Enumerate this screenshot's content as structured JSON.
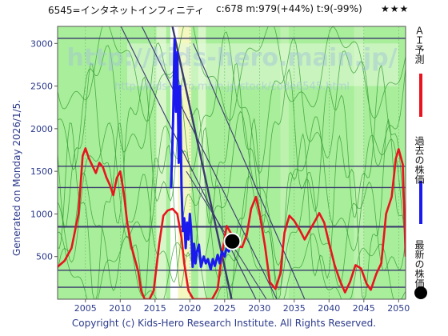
{
  "header": {
    "name": "6545=インタネットインフィニティ",
    "stats": "c:678  m:979(+44%)  t:9(-99%)",
    "stars": "★★★"
  },
  "footer": "Copyright (c) Kids-Hero Research Institute. All Rights Reserved.",
  "generated": "Generated on Monday 2026/1/5.",
  "legend": {
    "ai": "ＡＩ予測",
    "past": "過去の株価",
    "latest": "最新の株価"
  },
  "watermark": {
    "line1": "http://kids-hero.main.jp/",
    "line2": "http://kids-hero.main.jp/stock/code6545.html"
  },
  "colors": {
    "ai": "#e8141e",
    "past": "#1a1aee",
    "latest": "#000000",
    "trend": "#3a3a6e",
    "green": "#a9ee9a",
    "axis": "#2b3a8a"
  },
  "chart_data": {
    "type": "line",
    "xlim": [
      2001,
      2051
    ],
    "ylim": [
      0,
      3200
    ],
    "xticks": [
      2005,
      2010,
      2015,
      2020,
      2025,
      2030,
      2035,
      2040,
      2045,
      2050
    ],
    "yticks": [
      500,
      1000,
      1500,
      2000,
      2500,
      3000
    ],
    "h_levels": [
      140,
      340,
      850,
      1310,
      1560,
      3060
    ],
    "series": [
      {
        "name": "ＡＩ予測",
        "x": [
          2001,
          2002,
          2003,
          2004,
          2004.6,
          2005,
          2005.5,
          2006.5,
          2007,
          2007.5,
          2008,
          2008.5,
          2009,
          2009.5,
          2010,
          2010.5,
          2011,
          2011.6,
          2012,
          2012.6,
          2013,
          2013.5,
          2014.2,
          2014.8,
          2015.6,
          2016.2,
          2016.8,
          2017.5,
          2018.2,
          2018.8,
          2019.2,
          2019.8,
          2020.5,
          2021.5,
          2022.5,
          2023.2,
          2024,
          2024.6,
          2025.3,
          2026,
          2026.8,
          2027.5,
          2028.2,
          2028.8,
          2029.5,
          2030,
          2030.8,
          2031.5,
          2032.3,
          2033,
          2033.6,
          2034.3,
          2035,
          2035.8,
          2036.5,
          2037.3,
          2038,
          2038.6,
          2039.3,
          2040,
          2040.8,
          2041.6,
          2042.3,
          2043,
          2043.8,
          2044.6,
          2045.4,
          2046,
          2046.8,
          2047.5,
          2048.2,
          2049,
          2049.6,
          2050,
          2050.6,
          2051
        ],
        "y": [
          380,
          450,
          600,
          1000,
          1680,
          1770,
          1650,
          1480,
          1600,
          1550,
          1430,
          1340,
          1220,
          1420,
          1500,
          1250,
          900,
          620,
          500,
          320,
          100,
          0,
          0,
          100,
          650,
          980,
          1040,
          1060,
          1000,
          720,
          420,
          100,
          0,
          0,
          0,
          0,
          120,
          520,
          860,
          760,
          620,
          610,
          760,
          1060,
          1200,
          1020,
          620,
          200,
          120,
          300,
          780,
          980,
          920,
          810,
          700,
          820,
          920,
          1010,
          900,
          660,
          400,
          210,
          80,
          200,
          400,
          360,
          180,
          110,
          300,
          420,
          1000,
          1200,
          1650,
          1760,
          1580,
          500
        ]
      },
      {
        "name": "過去の株価",
        "x": [
          2017.3,
          2017.6,
          2017.8,
          2018,
          2018.2,
          2018.4,
          2018.6,
          2018.8,
          2019,
          2019.2,
          2019.4,
          2019.6,
          2019.8,
          2020,
          2020.2,
          2020.4,
          2020.6,
          2020.8,
          2021,
          2021.3,
          2021.6,
          2022,
          2022.3,
          2022.6,
          2023,
          2023.3,
          2023.6,
          2024,
          2024.3,
          2024.6,
          2025,
          2025.3,
          2025.6,
          2025.9
        ],
        "y": [
          1300,
          2100,
          3050,
          2200,
          2900,
          1600,
          2500,
          1300,
          800,
          950,
          600,
          900,
          700,
          1000,
          800,
          380,
          650,
          420,
          550,
          640,
          380,
          500,
          420,
          470,
          350,
          470,
          390,
          520,
          420,
          560,
          500,
          610,
          560,
          680
        ]
      }
    ],
    "latest": {
      "x": 2026.1,
      "y": 678
    }
  }
}
